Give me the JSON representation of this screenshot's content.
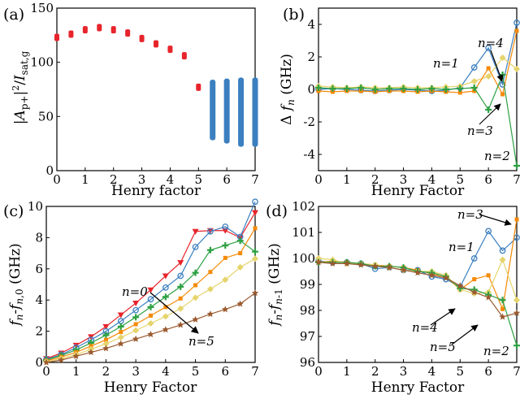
{
  "colors": {
    "n0": "#e8242b",
    "n1": "#3b7fc0",
    "n2": "#2ea043",
    "n3": "#f58a07",
    "n4": "#e5d46c",
    "n5": "#9a5a2f",
    "red": "#e8242b",
    "blue": "#3b7fc0"
  },
  "chart_data": [
    {
      "id": "a",
      "type": "scatter",
      "panel_label": "(a)",
      "xlabel": "Henry factor",
      "ylabel": "|A_p+|^2/I_sat,g",
      "xlim": [
        0,
        7
      ],
      "ylim": [
        0,
        150
      ],
      "xticks": [
        "0",
        "1",
        "2",
        "3",
        "4",
        "5",
        "6",
        "7"
      ],
      "yticks": [
        "0",
        "50",
        "100",
        "150"
      ],
      "stable": {
        "x": [
          0,
          0.5,
          1,
          1.5,
          2,
          2.5,
          3,
          3.5,
          4,
          4.5,
          5
        ],
        "y": [
          123,
          126,
          130,
          132,
          130,
          127,
          122,
          117,
          112,
          106,
          77
        ],
        "color": "red"
      },
      "unstable": [
        {
          "x": 5.5,
          "ymin": 28,
          "ymax": 84
        },
        {
          "x": 6,
          "ymin": 25,
          "ymax": 85
        },
        {
          "x": 6.5,
          "ymin": 22,
          "ymax": 86
        },
        {
          "x": 7,
          "ymin": 22,
          "ymax": 86
        }
      ]
    },
    {
      "id": "b",
      "type": "line",
      "panel_label": "(b)",
      "xlabel": "Henry Factor",
      "ylabel": "Δ f_n (GHz)",
      "xlim": [
        0,
        7
      ],
      "ylim": [
        -5,
        5
      ],
      "xticks": [
        "0",
        "1",
        "2",
        "3",
        "4",
        "5",
        "6",
        "7"
      ],
      "yticks": [
        "-4",
        "-2",
        "0",
        "2",
        "4"
      ],
      "x": [
        0,
        0.5,
        1,
        1.5,
        2,
        2.5,
        3,
        3.5,
        4,
        4.5,
        5,
        5.5,
        6,
        6.5,
        7
      ],
      "series": [
        {
          "key": "n1",
          "marker": "circle",
          "values": [
            0,
            0.05,
            0,
            -0.05,
            -0.1,
            -0.05,
            0,
            -0.05,
            -0.1,
            -0.05,
            0.1,
            1.35,
            2.55,
            0.3,
            4.1
          ]
        },
        {
          "key": "n4",
          "marker": "diamond",
          "values": [
            0.2,
            0.15,
            0.1,
            0.15,
            0.1,
            0.1,
            0.15,
            0.1,
            0.1,
            0.15,
            0.2,
            0.5,
            0.8,
            1.95,
            1.25
          ]
        },
        {
          "key": "n3",
          "marker": "square",
          "values": [
            -0.1,
            -0.15,
            -0.1,
            -0.1,
            -0.15,
            -0.1,
            -0.1,
            -0.15,
            -0.1,
            -0.15,
            -0.2,
            -0.1,
            1.3,
            -0.3,
            3.6
          ]
        },
        {
          "key": "n2",
          "marker": "plus",
          "values": [
            0.1,
            0.05,
            0.05,
            0.1,
            0,
            0.05,
            0.05,
            0,
            0.05,
            0,
            0.05,
            0.1,
            -1.25,
            0.9,
            -4.7
          ]
        }
      ],
      "annotations": [
        "n=4",
        "n=1",
        "n=3",
        "n=2"
      ]
    },
    {
      "id": "c",
      "type": "line",
      "panel_label": "(c)",
      "xlabel": "Henry Factor",
      "ylabel": "f_n-f_n,0 (GHz)",
      "xlim": [
        0,
        7
      ],
      "ylim": [
        0,
        10
      ],
      "xticks": [
        "0",
        "1",
        "2",
        "3",
        "4",
        "5",
        "6",
        "7"
      ],
      "yticks": [
        "0",
        "2",
        "4",
        "6",
        "8",
        "10"
      ],
      "x": [
        0,
        0.5,
        1,
        1.5,
        2,
        2.5,
        3,
        3.5,
        4,
        4.5,
        5,
        5.5,
        6,
        6.5,
        7
      ],
      "series": [
        {
          "key": "n0",
          "marker": "triangle",
          "values": [
            0.25,
            0.6,
            1.1,
            1.65,
            2.3,
            3.05,
            3.8,
            4.65,
            5.55,
            6.4,
            8.4,
            8.45,
            8.45,
            8.0,
            9.6
          ]
        },
        {
          "key": "n1",
          "marker": "circle",
          "values": [
            0.2,
            0.5,
            0.95,
            1.45,
            2.0,
            2.65,
            3.35,
            4.05,
            4.8,
            5.55,
            7.4,
            8.4,
            8.7,
            8.05,
            10.3
          ]
        },
        {
          "key": "n2",
          "marker": "plus",
          "values": [
            0.15,
            0.45,
            0.8,
            1.25,
            1.75,
            2.3,
            2.9,
            3.55,
            4.2,
            4.85,
            5.75,
            7.2,
            7.5,
            7.8,
            7.1
          ]
        },
        {
          "key": "n3",
          "marker": "square",
          "values": [
            0.1,
            0.35,
            0.65,
            1.05,
            1.45,
            1.95,
            2.45,
            3.0,
            3.55,
            4.1,
            4.95,
            5.8,
            6.7,
            7.0,
            8.6
          ]
        },
        {
          "key": "n4",
          "marker": "diamond",
          "values": [
            0.05,
            0.25,
            0.5,
            0.85,
            1.2,
            1.6,
            2.05,
            2.5,
            2.95,
            3.45,
            4.15,
            4.7,
            5.3,
            6.1,
            6.65
          ]
        },
        {
          "key": "n5",
          "marker": "star",
          "values": [
            0,
            0.15,
            0.4,
            0.65,
            0.9,
            1.2,
            1.5,
            1.8,
            2.1,
            2.4,
            2.75,
            3.1,
            3.4,
            3.75,
            4.45
          ]
        }
      ],
      "annotations": [
        "n=0",
        "n=5"
      ]
    },
    {
      "id": "d",
      "type": "line",
      "panel_label": "(d)",
      "xlabel": "Henry Factor",
      "ylabel": "f_n-f_n-1 (GHz)",
      "xlim": [
        0,
        7
      ],
      "ylim": [
        96,
        102
      ],
      "xticks": [
        "0",
        "1",
        "2",
        "3",
        "4",
        "5",
        "6",
        "7"
      ],
      "yticks": [
        "96",
        "97",
        "98",
        "99",
        "100",
        "101",
        "102"
      ],
      "x": [
        0,
        0.5,
        1,
        1.5,
        2,
        2.5,
        3,
        3.5,
        4,
        4.5,
        5,
        5.5,
        6,
        6.5,
        7
      ],
      "series": [
        {
          "key": "n1",
          "marker": "circle",
          "values": [
            99.9,
            99.85,
            99.85,
            99.8,
            99.6,
            99.65,
            99.55,
            99.55,
            99.3,
            99.2,
            98.9,
            100.0,
            101.05,
            100.3,
            100.8
          ]
        },
        {
          "key": "n3",
          "marker": "square",
          "values": [
            99.85,
            99.9,
            99.85,
            99.8,
            99.75,
            99.7,
            99.65,
            99.55,
            99.4,
            99.3,
            98.8,
            99.2,
            99.35,
            98.05,
            101.5
          ]
        },
        {
          "key": "n4",
          "marker": "diamond",
          "values": [
            100.0,
            99.95,
            99.8,
            99.8,
            99.75,
            99.65,
            99.55,
            99.5,
            99.5,
            99.35,
            98.8,
            98.65,
            98.7,
            99.95,
            98.4
          ]
        },
        {
          "key": "n2",
          "marker": "plus",
          "values": [
            99.85,
            99.85,
            99.85,
            99.8,
            99.7,
            99.7,
            99.65,
            99.5,
            99.45,
            99.3,
            98.85,
            98.8,
            98.6,
            98.4,
            96.65
          ]
        },
        {
          "key": "n5",
          "marker": "star",
          "values": [
            99.85,
            99.8,
            99.8,
            99.75,
            99.7,
            99.65,
            99.55,
            99.45,
            99.35,
            99.25,
            98.95,
            98.7,
            98.5,
            97.75,
            97.9
          ]
        }
      ],
      "annotations": [
        "n=3",
        "n=1",
        "n=4",
        "n=5",
        "n=2"
      ]
    }
  ]
}
